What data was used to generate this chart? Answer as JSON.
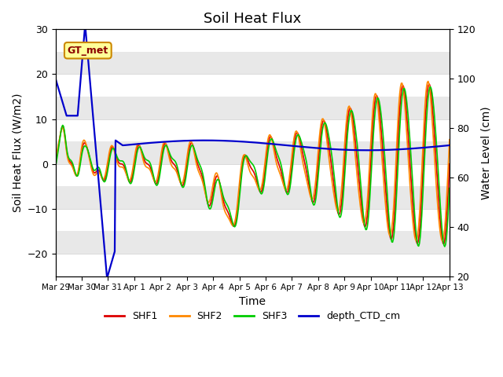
{
  "title": "Soil Heat Flux",
  "ylabel_left": "Soil Heat Flux (W/m2)",
  "ylabel_right": "Water Level (cm)",
  "xlabel": "Time",
  "ylim_left": [
    -25,
    30
  ],
  "ylim_right": [
    20,
    120
  ],
  "colors": {
    "SHF1": "#dd0000",
    "SHF2": "#ff8800",
    "SHF3": "#00cc00",
    "depth_CTD_cm": "#0000cc"
  },
  "annotation_text": "GT_met",
  "background_color": "#e8e8e8",
  "band_color": "#f5f5f5",
  "legend_labels": [
    "SHF1",
    "SHF2",
    "SHF3",
    "depth_CTD_cm"
  ]
}
